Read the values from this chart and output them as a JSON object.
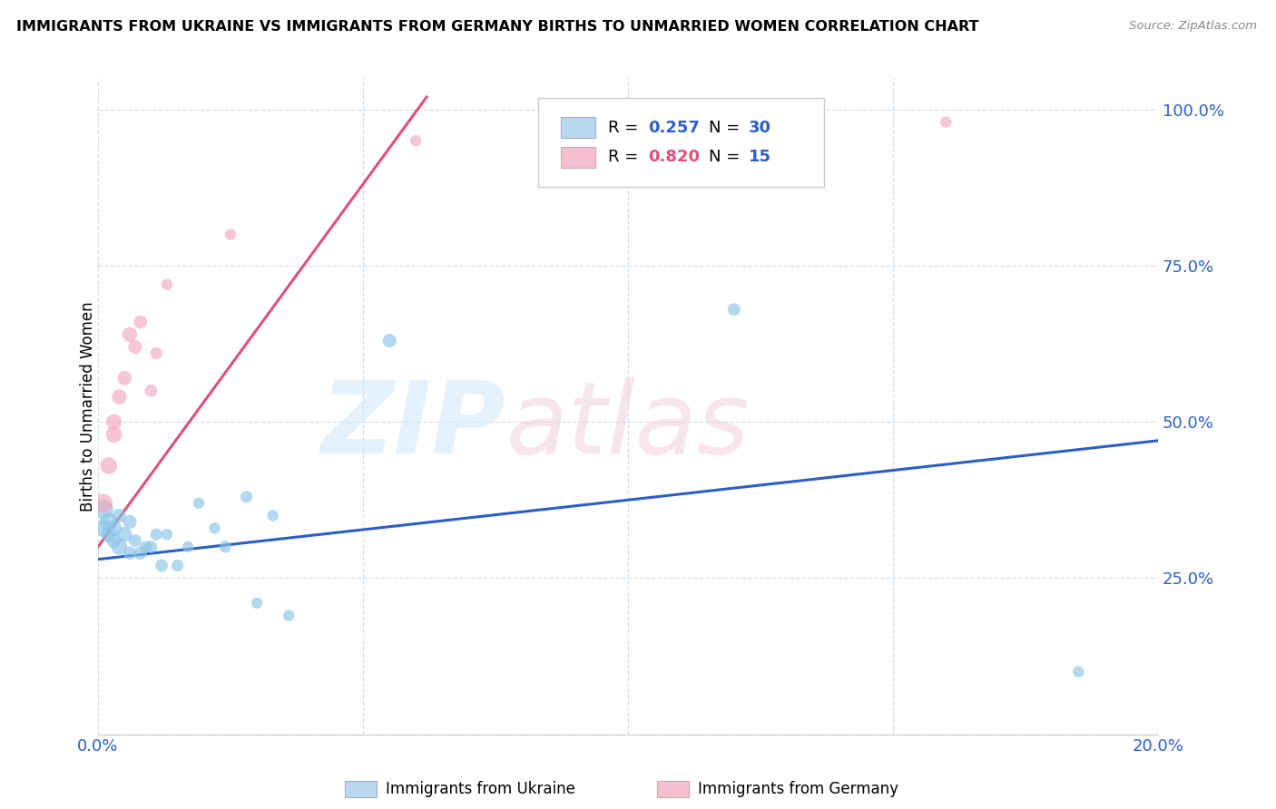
{
  "title": "IMMIGRANTS FROM UKRAINE VS IMMIGRANTS FROM GERMANY BIRTHS TO UNMARRIED WOMEN CORRELATION CHART",
  "source": "Source: ZipAtlas.com",
  "ylabel_label": "Births to Unmarried Women",
  "ukraine_R": 0.257,
  "ukraine_N": 30,
  "germany_R": 0.82,
  "germany_N": 15,
  "ukraine_color": "#89c4e8",
  "germany_color": "#f4a8be",
  "ukraine_line_color": "#2b5fc7",
  "germany_line_color": "#e0507a",
  "legend_box_ukraine": "#b8d8f0",
  "legend_box_germany": "#f4c0d0",
  "ukraine_line_x0": 0.0,
  "ukraine_line_y0": 0.28,
  "ukraine_line_x1": 0.2,
  "ukraine_line_y1": 0.47,
  "germany_line_x0": 0.0,
  "germany_line_y0": 0.3,
  "germany_line_x1": 0.062,
  "germany_line_y1": 1.02,
  "ukraine_points_x": [
    0.001,
    0.001,
    0.002,
    0.002,
    0.003,
    0.003,
    0.004,
    0.004,
    0.005,
    0.006,
    0.006,
    0.007,
    0.008,
    0.009,
    0.01,
    0.011,
    0.012,
    0.013,
    0.015,
    0.017,
    0.019,
    0.022,
    0.024,
    0.028,
    0.03,
    0.033,
    0.036,
    0.055,
    0.12,
    0.185
  ],
  "ukraine_points_y": [
    0.36,
    0.33,
    0.34,
    0.32,
    0.33,
    0.31,
    0.3,
    0.35,
    0.32,
    0.34,
    0.29,
    0.31,
    0.29,
    0.3,
    0.3,
    0.32,
    0.27,
    0.32,
    0.27,
    0.3,
    0.37,
    0.33,
    0.3,
    0.38,
    0.21,
    0.35,
    0.19,
    0.63,
    0.68,
    0.1
  ],
  "ukraine_sizes": [
    250,
    180,
    200,
    160,
    150,
    130,
    160,
    120,
    140,
    120,
    110,
    100,
    110,
    90,
    100,
    90,
    100,
    80,
    90,
    80,
    80,
    80,
    90,
    90,
    80,
    80,
    80,
    120,
    100,
    80
  ],
  "germany_points_x": [
    0.001,
    0.002,
    0.003,
    0.003,
    0.004,
    0.005,
    0.006,
    0.007,
    0.008,
    0.01,
    0.011,
    0.013,
    0.025,
    0.06,
    0.16
  ],
  "germany_points_y": [
    0.37,
    0.43,
    0.48,
    0.5,
    0.54,
    0.57,
    0.64,
    0.62,
    0.66,
    0.55,
    0.61,
    0.72,
    0.8,
    0.95,
    0.98
  ],
  "germany_sizes": [
    220,
    180,
    170,
    150,
    140,
    130,
    140,
    120,
    110,
    100,
    90,
    80,
    80,
    80,
    80
  ],
  "xlim": [
    0.0,
    0.2
  ],
  "ylim": [
    0.0,
    1.05
  ],
  "x_ticks": [
    0.0,
    0.05,
    0.1,
    0.15,
    0.2
  ],
  "x_tick_labels": [
    "0.0%",
    "",
    "",
    "",
    "20.0%"
  ],
  "y_ticks": [
    0.0,
    0.25,
    0.5,
    0.75,
    1.0
  ],
  "y_tick_labels": [
    "",
    "25.0%",
    "50.0%",
    "75.0%",
    "100.0%"
  ]
}
